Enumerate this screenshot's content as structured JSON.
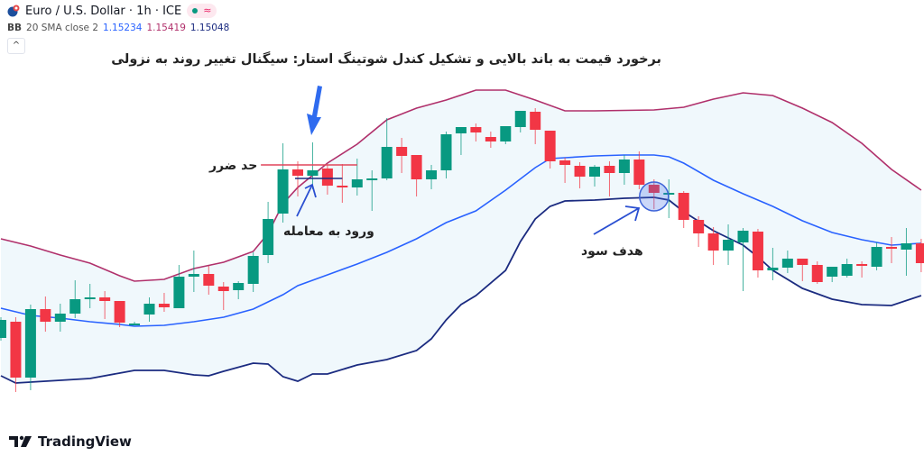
{
  "header": {
    "symbol_title": "Euro / U.S. Dollar · 1h · ICE",
    "symbol_icon": "eur-usd-flag-icon",
    "market_status": "market-open-dot",
    "wave_symbol": "≈"
  },
  "indicator": {
    "name": "BB",
    "params": "20 SMA close 2",
    "basis": "1.15234",
    "upper": "1.15419",
    "lower": "1.15048"
  },
  "collapse_button": "^",
  "annotations": {
    "title": "برخورد قیمت به باند بالایی و تشکیل کندل شوتینگ استار: سیگنال تغییر روند به نزولی",
    "stop_loss": "حد ضرر",
    "entry": "ورود به معامله",
    "take_profit": "هدف سود"
  },
  "logo": {
    "text": "TradingView",
    "mark": "TV"
  },
  "colors": {
    "up": "#089981",
    "down": "#f23645",
    "upper_band": "#b0306b",
    "basis": "#2962ff",
    "lower_band": "#1b2b80",
    "band_fill": "#f0f8fc",
    "annotation_arrow": "#2a4fd1",
    "stop_line": "#e0455a"
  },
  "chart_data": {
    "type": "candlestick",
    "indicator": "Bollinger Bands (20, 2)",
    "candles_ohlc": [
      [
        1.14915,
        1.14984,
        1.14906,
        1.14975
      ],
      [
        1.14969,
        1.14984,
        1.14735,
        1.14783
      ],
      [
        1.14783,
        1.15026,
        1.14741,
        1.15011
      ],
      [
        1.15011,
        1.15053,
        1.14936,
        1.14969
      ],
      [
        1.14969,
        1.15029,
        1.14936,
        1.14996
      ],
      [
        1.14996,
        1.15107,
        1.14981,
        1.15044
      ],
      [
        1.15044,
        1.15095,
        1.15014,
        1.1505
      ],
      [
        1.1505,
        1.15071,
        1.14978,
        1.15038
      ],
      [
        1.15038,
        1.15038,
        1.14951,
        1.14966
      ],
      [
        1.14963,
        1.14969,
        1.1496,
        1.14963
      ],
      [
        1.14993,
        1.1505,
        1.14969,
        1.15029
      ],
      [
        1.15029,
        1.15065,
        1.15002,
        1.15017
      ],
      [
        1.15014,
        1.15158,
        1.15014,
        1.15119
      ],
      [
        1.15119,
        1.15206,
        1.15068,
        1.15128
      ],
      [
        1.15128,
        1.15155,
        1.15059,
        1.15089
      ],
      [
        1.15086,
        1.15101,
        1.15008,
        1.15071
      ],
      [
        1.15074,
        1.15104,
        1.15044,
        1.15098
      ],
      [
        1.15095,
        1.152,
        1.15068,
        1.15188
      ],
      [
        1.15191,
        1.15368,
        1.15164,
        1.15311
      ],
      [
        1.15329,
        1.15563,
        1.15299,
        1.15476
      ],
      [
        1.15476,
        1.15503,
        1.15386,
        1.15455
      ],
      [
        1.15455,
        1.15566,
        1.1541,
        1.15473
      ],
      [
        1.15479,
        1.15491,
        1.15392,
        1.15422
      ],
      [
        1.15422,
        1.15494,
        1.15365,
        1.15416
      ],
      [
        1.15416,
        1.15512,
        1.15389,
        1.15443
      ],
      [
        1.15443,
        1.15473,
        1.15338,
        1.15446
      ],
      [
        1.15446,
        1.15647,
        1.1544,
        1.15551
      ],
      [
        1.15551,
        1.15581,
        1.15464,
        1.15521
      ],
      [
        1.15524,
        1.15524,
        1.15386,
        1.15443
      ],
      [
        1.15443,
        1.15491,
        1.1541,
        1.15473
      ],
      [
        1.15473,
        1.15602,
        1.15446,
        1.15593
      ],
      [
        1.15596,
        1.15617,
        1.15524,
        1.15617
      ],
      [
        1.15617,
        1.15629,
        1.15569,
        1.15599
      ],
      [
        1.15584,
        1.15602,
        1.15548,
        1.15569
      ],
      [
        1.15569,
        1.1562,
        1.1556,
        1.1562
      ],
      [
        1.15617,
        1.15671,
        1.15599,
        1.15671
      ],
      [
        1.15668,
        1.1568,
        1.1556,
        1.15608
      ],
      [
        1.15605,
        1.15605,
        1.15479,
        1.15503
      ],
      [
        1.15506,
        1.15515,
        1.15431,
        1.15491
      ],
      [
        1.15488,
        1.155,
        1.15413,
        1.15452
      ],
      [
        1.15452,
        1.15491,
        1.15419,
        1.15485
      ],
      [
        1.15488,
        1.15503,
        1.15386,
        1.15464
      ],
      [
        1.15464,
        1.15524,
        1.15425,
        1.15509
      ],
      [
        1.15509,
        1.15536,
        1.1541,
        1.15425
      ],
      [
        1.15425,
        1.15443,
        1.15344,
        1.15398
      ],
      [
        1.15395,
        1.15443,
        1.15314,
        1.15398
      ],
      [
        1.15398,
        1.15404,
        1.15281,
        1.15308
      ],
      [
        1.15308,
        1.1532,
        1.15218,
        1.15263
      ],
      [
        1.15263,
        1.15284,
        1.15158,
        1.15206
      ],
      [
        1.15206,
        1.15293,
        1.15158,
        1.15242
      ],
      [
        1.15233,
        1.15281,
        1.15071,
        1.15272
      ],
      [
        1.15269,
        1.15278,
        1.15116,
        1.1514
      ],
      [
        1.1514,
        1.15215,
        1.15107,
        1.15149
      ],
      [
        1.15149,
        1.15206,
        1.15131,
        1.15179
      ],
      [
        1.15179,
        1.15179,
        1.15104,
        1.15158
      ],
      [
        1.15158,
        1.1517,
        1.15095,
        1.15101
      ],
      [
        1.15119,
        1.15152,
        1.15101,
        1.15152
      ],
      [
        1.15122,
        1.15179,
        1.15116,
        1.15161
      ],
      [
        1.15161,
        1.1517,
        1.15116,
        1.15155
      ],
      [
        1.15152,
        1.15233,
        1.1514,
        1.15218
      ],
      [
        1.15218,
        1.15251,
        1.15164,
        1.15212
      ],
      [
        1.15209,
        1.15281,
        1.15122,
        1.1523
      ],
      [
        1.1523,
        1.15245,
        1.15134,
        1.15164
      ]
    ],
    "upper_band": [
      [
        0,
        1.15245
      ],
      [
        2,
        1.15221
      ],
      [
        4,
        1.15191
      ],
      [
        6,
        1.15164
      ],
      [
        8,
        1.15122
      ],
      [
        9,
        1.15104
      ],
      [
        11,
        1.1511
      ],
      [
        13,
        1.15146
      ],
      [
        15,
        1.15167
      ],
      [
        17,
        1.15203
      ],
      [
        18,
        1.15263
      ],
      [
        19,
        1.15362
      ],
      [
        20,
        1.15416
      ],
      [
        22,
        1.15497
      ],
      [
        24,
        1.1556
      ],
      [
        26,
        1.15641
      ],
      [
        28,
        1.1568
      ],
      [
        30,
        1.15707
      ],
      [
        32,
        1.1574
      ],
      [
        34,
        1.1574
      ],
      [
        36,
        1.15707
      ],
      [
        38,
        1.15671
      ],
      [
        40,
        1.15671
      ],
      [
        44,
        1.15674
      ],
      [
        46,
        1.15683
      ],
      [
        48,
        1.1571
      ],
      [
        50,
        1.15731
      ],
      [
        52,
        1.15722
      ],
      [
        54,
        1.1568
      ],
      [
        56,
        1.15632
      ],
      [
        58,
        1.15563
      ],
      [
        60,
        1.15476
      ],
      [
        62,
        1.15407
      ]
    ],
    "basis": [
      [
        0,
        1.15014
      ],
      [
        2,
        1.1499
      ],
      [
        4,
        1.14981
      ],
      [
        6,
        1.14969
      ],
      [
        8,
        1.1496
      ],
      [
        9,
        1.14954
      ],
      [
        11,
        1.14957
      ],
      [
        13,
        1.14969
      ],
      [
        15,
        1.14984
      ],
      [
        17,
        1.15011
      ],
      [
        18,
        1.15035
      ],
      [
        19,
        1.15059
      ],
      [
        20,
        1.15089
      ],
      [
        22,
        1.15125
      ],
      [
        24,
        1.15161
      ],
      [
        26,
        1.152
      ],
      [
        28,
        1.15245
      ],
      [
        30,
        1.15299
      ],
      [
        32,
        1.15338
      ],
      [
        34,
        1.15407
      ],
      [
        36,
        1.15482
      ],
      [
        37,
        1.15512
      ],
      [
        38,
        1.15515
      ],
      [
        40,
        1.15521
      ],
      [
        42,
        1.15524
      ],
      [
        44,
        1.15524
      ],
      [
        45,
        1.15518
      ],
      [
        46,
        1.15497
      ],
      [
        48,
        1.1544
      ],
      [
        50,
        1.15395
      ],
      [
        52,
        1.15353
      ],
      [
        54,
        1.15305
      ],
      [
        56,
        1.15266
      ],
      [
        58,
        1.15242
      ],
      [
        60,
        1.15224
      ],
      [
        62,
        1.1523
      ]
    ],
    "lower_band": [
      [
        0,
        1.14789
      ],
      [
        1,
        1.14765
      ],
      [
        3,
        1.14771
      ],
      [
        6,
        1.1478
      ],
      [
        8,
        1.14798
      ],
      [
        9,
        1.14807
      ],
      [
        11,
        1.14807
      ],
      [
        13,
        1.14792
      ],
      [
        14,
        1.14789
      ],
      [
        15,
        1.14804
      ],
      [
        17,
        1.14831
      ],
      [
        18,
        1.14828
      ],
      [
        19,
        1.14786
      ],
      [
        20,
        1.14771
      ],
      [
        21,
        1.14795
      ],
      [
        22,
        1.14795
      ],
      [
        24,
        1.14825
      ],
      [
        26,
        1.14843
      ],
      [
        28,
        1.14873
      ],
      [
        29,
        1.14912
      ],
      [
        30,
        1.14975
      ],
      [
        31,
        1.15026
      ],
      [
        32,
        1.15056
      ],
      [
        34,
        1.1514
      ],
      [
        35,
        1.15236
      ],
      [
        36,
        1.15311
      ],
      [
        37,
        1.15353
      ],
      [
        38,
        1.15371
      ],
      [
        40,
        1.15374
      ],
      [
        42,
        1.1538
      ],
      [
        44,
        1.15383
      ],
      [
        45,
        1.15374
      ],
      [
        46,
        1.15335
      ],
      [
        48,
        1.15272
      ],
      [
        50,
        1.15224
      ],
      [
        51,
        1.15185
      ],
      [
        52,
        1.1514
      ],
      [
        54,
        1.1508
      ],
      [
        56,
        1.15044
      ],
      [
        58,
        1.15026
      ],
      [
        60,
        1.15023
      ],
      [
        62,
        1.15056
      ]
    ],
    "stop_loss_level": 1.15491,
    "entry_level": 1.15446,
    "signal_candle_index": 21,
    "target_candle_index": 44
  }
}
